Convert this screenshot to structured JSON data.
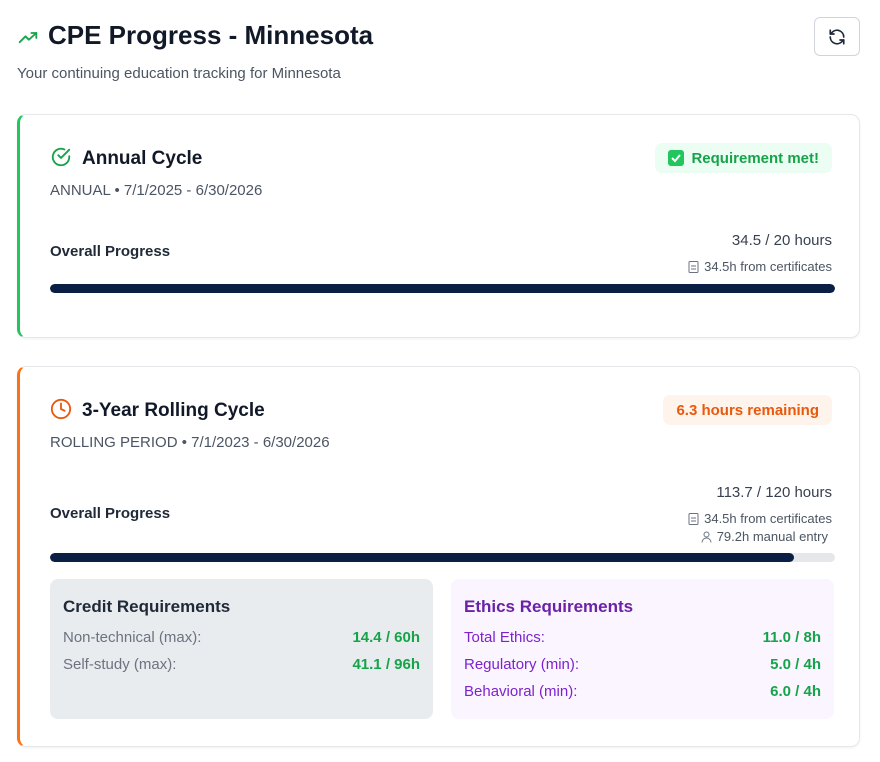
{
  "header": {
    "title": "CPE Progress - Minnesota",
    "subtitle": "Your continuing education tracking for Minnesota"
  },
  "cycles": [
    {
      "title": "Annual Cycle",
      "period": "ANNUAL • 7/1/2025 - 6/30/2026",
      "status": "Requirement met!",
      "progress_label": "Overall Progress",
      "progress_text": "34.5 / 20 hours",
      "sources": [
        "34.5h from certificates"
      ]
    },
    {
      "title": "3-Year Rolling Cycle",
      "period": "ROLLING PERIOD • 7/1/2023 - 6/30/2026",
      "status": "6.3 hours remaining",
      "progress_label": "Overall Progress",
      "progress_text": "113.7 / 120 hours",
      "sources": [
        "34.5h from certificates",
        "79.2h manual entry"
      ],
      "requirements": [
        {
          "title": "Credit Requirements",
          "rows": [
            {
              "label": "Non-technical (max):",
              "value": "14.4 / 60h"
            },
            {
              "label": "Self-study (max):",
              "value": "41.1 / 96h"
            }
          ]
        },
        {
          "title": "Ethics Requirements",
          "rows": [
            {
              "label": "Total Ethics:",
              "value": "11.0 / 8h"
            },
            {
              "label": "Regulatory (min):",
              "value": "5.0 / 4h"
            },
            {
              "label": "Behavioral (min):",
              "value": "6.0 / 4h"
            }
          ]
        }
      ]
    }
  ]
}
